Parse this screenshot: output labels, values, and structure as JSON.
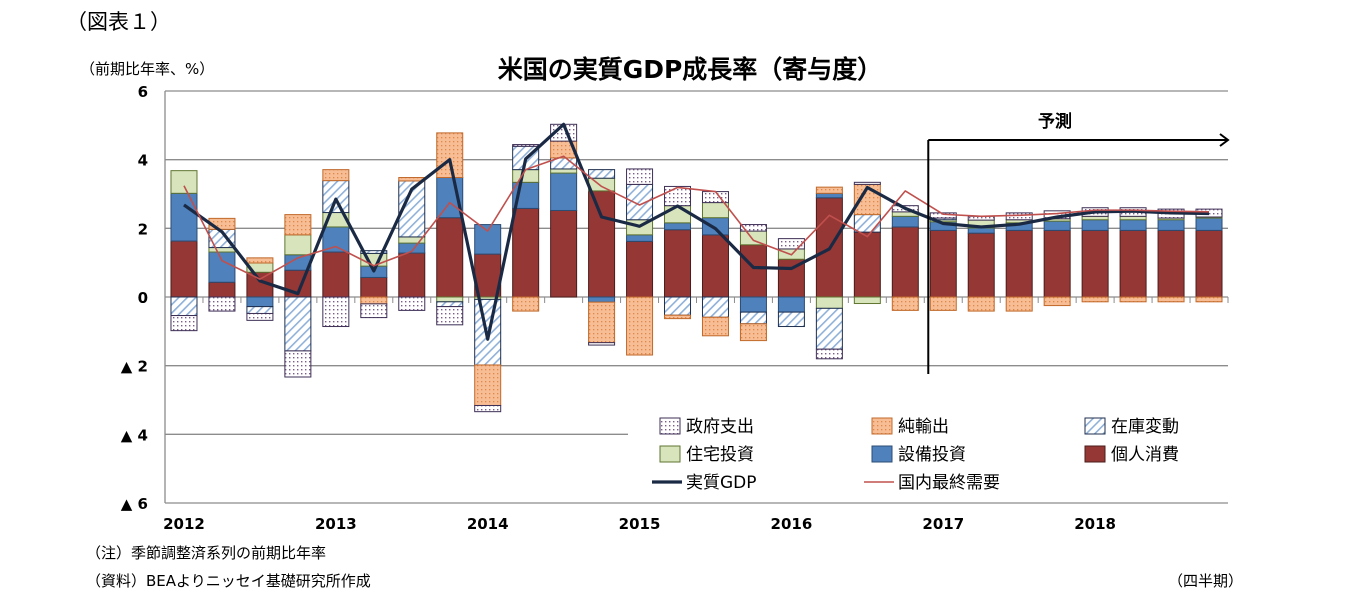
{
  "header": {
    "figure_label": "（図表１）",
    "unit": "（前期比年率、%）"
  },
  "footer": {
    "note": "（注）季節調整済系列の前期比年率",
    "source": "（資料）BEAよりニッセイ基礎研究所作成",
    "period_label": "（四半期）"
  },
  "chart_data": {
    "type": "bar",
    "stacked": true,
    "title": "米国の実質GDP成長率（寄与度）",
    "ylabel": "（前期比年率、%）",
    "xlabel": "（四半期）",
    "ylim": [
      -6,
      6
    ],
    "yticks": [
      6,
      4,
      2,
      0,
      -2,
      -4,
      -6
    ],
    "ytick_labels": [
      "6",
      "4",
      "2",
      "0",
      "▲ 2",
      "▲ 4",
      "▲ 6"
    ],
    "grid": true,
    "legend_position": "bottom-right",
    "x_tick_labels": [
      "2012",
      "2013",
      "2014",
      "2015",
      "2016",
      "2017",
      "2018"
    ],
    "categories": [
      "2012Q1",
      "2012Q2",
      "2012Q3",
      "2012Q4",
      "2013Q1",
      "2013Q2",
      "2013Q3",
      "2013Q4",
      "2014Q1",
      "2014Q2",
      "2014Q3",
      "2014Q4",
      "2015Q1",
      "2015Q2",
      "2015Q3",
      "2015Q4",
      "2016Q1",
      "2016Q2",
      "2016Q3",
      "2016Q4",
      "2017Q1",
      "2017Q2",
      "2017Q3",
      "2017Q4",
      "2018Q1",
      "2018Q2",
      "2018Q3",
      "2018Q4"
    ],
    "forecast": {
      "label": "予測",
      "start": "2017Q1"
    },
    "bar_series": [
      {
        "name": "個人消費",
        "color": "#953735",
        "values": [
          1.63,
          0.43,
          0.72,
          0.78,
          1.31,
          0.57,
          1.28,
          2.31,
          1.25,
          2.58,
          2.52,
          3.09,
          1.62,
          1.96,
          1.81,
          1.52,
          1.1,
          2.89,
          1.89,
          2.04,
          1.94,
          1.86,
          1.94,
          1.94,
          1.94,
          1.94,
          1.94,
          1.94
        ]
      },
      {
        "name": "設備投資",
        "color": "#4f81bd",
        "values": [
          1.39,
          0.88,
          -0.28,
          0.45,
          0.73,
          0.33,
          0.29,
          1.17,
          0.86,
          0.76,
          1.09,
          -0.15,
          0.19,
          0.2,
          0.5,
          -0.44,
          -0.44,
          0.13,
          0,
          0.31,
          0.25,
          0.15,
          0.22,
          0.27,
          0.31,
          0.31,
          0.31,
          0.36
        ]
      },
      {
        "name": "住宅投資",
        "color": "#d8e4bc",
        "values": [
          0.66,
          0.13,
          0.27,
          0.58,
          0.42,
          0.37,
          0.18,
          -0.14,
          -0.07,
          0.37,
          0.12,
          0.37,
          0.44,
          0.5,
          0.44,
          0.4,
          0.3,
          -0.33,
          -0.19,
          0.13,
          0.06,
          0.23,
          0.09,
          0.07,
          0.1,
          0.1,
          0.05,
          0.03
        ]
      },
      {
        "name": "在庫変動",
        "color": "#8fb0d8",
        "values": [
          -0.54,
          0.53,
          -0.2,
          -1.57,
          0.93,
          0.08,
          1.63,
          -0.14,
          -1.91,
          0.68,
          0.32,
          0.25,
          1.03,
          -0.53,
          -0.59,
          -0.34,
          -0.42,
          -1.19,
          0.51,
          0,
          0.05,
          0,
          0,
          0,
          0,
          0,
          0,
          0
        ]
      },
      {
        "name": "純輸出",
        "color": "#f5b58a",
        "values": [
          0,
          0.32,
          0.15,
          0.59,
          0.32,
          -0.2,
          0.1,
          1.3,
          -1.18,
          -0.41,
          0.49,
          -1.18,
          -1.69,
          -0.1,
          -0.54,
          -0.49,
          0,
          0.18,
          0.88,
          -0.39,
          -0.39,
          -0.41,
          -0.41,
          -0.25,
          -0.14,
          -0.14,
          -0.14,
          -0.14
        ]
      },
      {
        "name": "政府支出",
        "color": "#8064a2",
        "values": [
          -0.44,
          -0.41,
          -0.2,
          -0.76,
          -0.86,
          -0.4,
          -0.39,
          -0.53,
          -0.18,
          0.05,
          0.49,
          -0.07,
          0.45,
          0.56,
          0.32,
          0.19,
          0.3,
          -0.28,
          0.06,
          0.18,
          0.15,
          0.11,
          0.2,
          0.23,
          0.25,
          0.25,
          0.26,
          0.23
        ]
      }
    ],
    "line_series": [
      {
        "name": "実質GDP",
        "color": "#1b2a44",
        "values": [
          2.68,
          1.9,
          0.47,
          0.1,
          2.85,
          0.76,
          3.14,
          4.0,
          -1.23,
          4.02,
          5.03,
          2.33,
          2.06,
          2.65,
          1.99,
          0.86,
          0.83,
          1.4,
          3.19,
          2.58,
          2.14,
          2.04,
          2.12,
          2.33,
          2.48,
          2.5,
          2.45,
          2.43
        ]
      },
      {
        "name": "国内最終需要",
        "color": "#c0504d",
        "values": [
          3.24,
          1.06,
          0.52,
          1.14,
          1.47,
          0.91,
          1.33,
          2.75,
          1.92,
          3.71,
          4.1,
          3.22,
          2.68,
          3.19,
          3.07,
          1.65,
          1.23,
          2.38,
          1.76,
          3.09,
          2.41,
          2.35,
          2.38,
          2.43,
          2.53,
          2.53,
          2.5,
          2.48
        ]
      }
    ],
    "legend_order": [
      "政府支出",
      "純輸出",
      "在庫変動",
      "住宅投資",
      "設備投資",
      "個人消費",
      "実質GDP",
      "国内最終需要"
    ]
  }
}
